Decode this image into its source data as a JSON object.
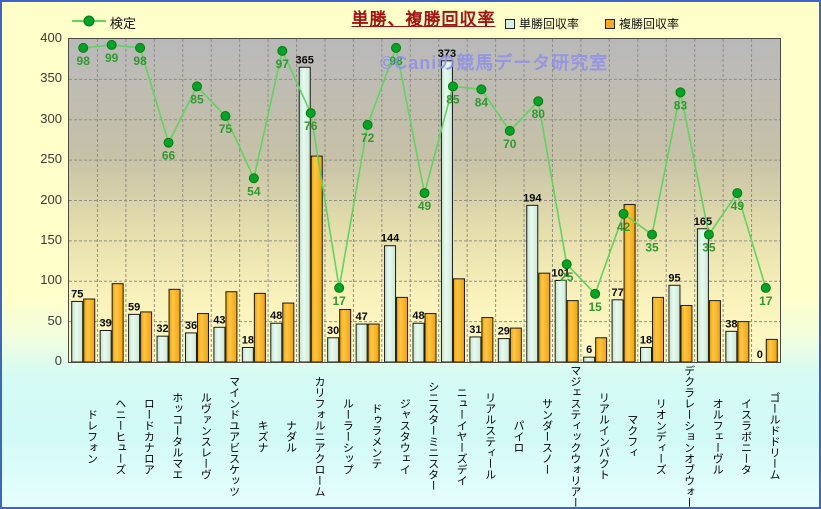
{
  "chart_data": {
    "type": "bar",
    "title": "単勝、複勝回収率",
    "watermark": "©Caniの競馬データ研究室",
    "legend": {
      "line": "検定",
      "bars": [
        "単勝回収率",
        "複勝回収率"
      ],
      "position": "top"
    },
    "categories": [
      "ドレフォン",
      "ヘニーヒューズ",
      "ロードカナロア",
      "ホッコータルマエ",
      "ルヴァンスレーヴ",
      "マインドユアビスケッツ",
      "キズナ",
      "ナダル",
      "カリフォルニアクローム",
      "ルーラーシップ",
      "ドゥラメンテ",
      "ジャスタウェイ",
      "シニスターミニスター",
      "ニューイヤーズデイ",
      "リアルスティール",
      "パイロ",
      "サンダースノー",
      "マジェスティックウォリアー",
      "リアルインパクト",
      "マクフィ",
      "リオンディーズ",
      "デクラレーションオブウォー",
      "オルフェーヴル",
      "イスラボニータ",
      "ゴールドドリーム"
    ],
    "series": [
      {
        "name": "単勝回収率",
        "type": "bar",
        "color": "#D9F1E3",
        "values": [
          75,
          39,
          59,
          32,
          36,
          43,
          18,
          48,
          365,
          30,
          47,
          144,
          48,
          373,
          31,
          29,
          194,
          101,
          6,
          77,
          18,
          95,
          165,
          38,
          0
        ],
        "labels_shown": true
      },
      {
        "name": "複勝回収率",
        "type": "bar",
        "color": "#F9A91C",
        "values": [
          78,
          97,
          62,
          90,
          60,
          87,
          85,
          73,
          255,
          65,
          47,
          80,
          60,
          103,
          55,
          42,
          110,
          76,
          30,
          195,
          80,
          70,
          76,
          50,
          28
        ],
        "labels_shown": false
      },
      {
        "name": "検定",
        "type": "line",
        "color": "#00A428",
        "values": [
          98,
          99,
          98,
          66,
          85,
          75,
          54,
          97,
          76,
          17,
          72,
          98,
          49,
          85,
          84,
          70,
          80,
          25,
          15,
          42,
          35,
          83,
          35,
          49,
          17
        ],
        "labels_shown": true,
        "axis": "secondary"
      }
    ],
    "y_axis": {
      "min": 0,
      "max": 400,
      "step": 50,
      "tick_labels": [
        "400",
        "350",
        "300",
        "250",
        "200",
        "150",
        "100",
        "50",
        "0"
      ]
    },
    "secondary_axis": {
      "min": -8,
      "max": 101,
      "visible": false
    },
    "grid": {
      "horizontal": "dashed",
      "vertical": "dashed"
    },
    "colors": {
      "title": "#A31515",
      "line_label": "#2F992F",
      "bar_label": "#0A0A0A",
      "line": "#5FD45F",
      "marker": "#00A428",
      "watermark": "#8F8FE8",
      "plot_bg_top": "#B9B9BB",
      "plot_bg_bottom": "#FFFAC6",
      "canvas_top": "#FFFFC9",
      "canvas_bottom": "#E6FFFE",
      "frame_border": "#3F63C6"
    }
  }
}
